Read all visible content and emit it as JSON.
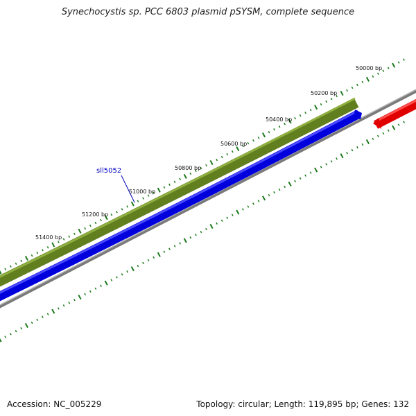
{
  "title": "Synechocystis sp. PCC 6803 plasmid pSYSM, complete sequence",
  "footer": {
    "accession": "Accession: NC_005229",
    "summary": "Topology: circular; Length: 119,895 bp; Genes: 132"
  },
  "ruler_labels": [
    "50000 bp",
    "50200 bp",
    "50400 bp",
    "50600 bp",
    "50800 bp",
    "51000 bp",
    "51200 bp",
    "51400 bp"
  ],
  "gene_label": "sll5052",
  "colors": {
    "tick": "#1a7a1a",
    "feature_olive": "#6b8e23",
    "feature_blue": "#0000ee",
    "feature_red": "#ee0000",
    "backbone": "#808080",
    "gene_label": "#0000c0"
  }
}
